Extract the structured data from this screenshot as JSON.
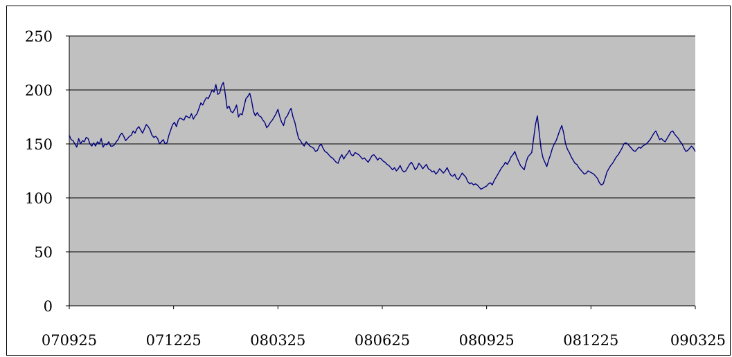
{
  "colors": {
    "plot_background": "#c0c0c0",
    "line": "#000080",
    "gridline": "#000000",
    "page": "#ffffff"
  },
  "chart_data": {
    "type": "line",
    "title": "",
    "xlabel": "",
    "ylabel": "",
    "ylim": [
      0,
      250
    ],
    "y_ticks": [
      "0",
      "50",
      "100",
      "150",
      "200",
      "250"
    ],
    "x_ticks": [
      "070925",
      "071225",
      "080325",
      "080625",
      "080925",
      "081225",
      "090325"
    ],
    "grid": "horizontal",
    "legend": "none",
    "series": [
      {
        "values": [
          158,
          154,
          153,
          150,
          147,
          155,
          150,
          153,
          152,
          156,
          155,
          150,
          148,
          151,
          148,
          152,
          150,
          155,
          147,
          150,
          149,
          152,
          148,
          148,
          149,
          152,
          154,
          158,
          160,
          157,
          153,
          155,
          157,
          158,
          162,
          160,
          164,
          166,
          163,
          160,
          164,
          168,
          166,
          163,
          158,
          156,
          157,
          155,
          150,
          152,
          154,
          150,
          151,
          158,
          163,
          168,
          170,
          166,
          172,
          174,
          173,
          172,
          176,
          175,
          174,
          178,
          173,
          176,
          178,
          183,
          188,
          186,
          190,
          193,
          192,
          196,
          200,
          198,
          205,
          196,
          197,
          204,
          207,
          196,
          183,
          185,
          180,
          179,
          182,
          186,
          175,
          178,
          177,
          185,
          192,
          194,
          197,
          190,
          180,
          176,
          179,
          176,
          175,
          172,
          170,
          165,
          167,
          170,
          172,
          175,
          178,
          182,
          175,
          170,
          167,
          174,
          176,
          180,
          183,
          175,
          170,
          162,
          155,
          153,
          150,
          148,
          152,
          150,
          148,
          147,
          146,
          143,
          144,
          148,
          150,
          146,
          143,
          142,
          140,
          138,
          137,
          135,
          133,
          132,
          137,
          140,
          136,
          139,
          141,
          144,
          140,
          139,
          142,
          141,
          140,
          138,
          136,
          137,
          135,
          133,
          136,
          139,
          140,
          138,
          135,
          137,
          136,
          134,
          133,
          131,
          130,
          128,
          126,
          128,
          125,
          127,
          130,
          126,
          124,
          125,
          128,
          131,
          133,
          130,
          126,
          128,
          132,
          130,
          127,
          129,
          131,
          127,
          126,
          124,
          125,
          122,
          124,
          127,
          125,
          123,
          125,
          128,
          124,
          121,
          120,
          122,
          118,
          117,
          120,
          123,
          121,
          119,
          115,
          113,
          114,
          112,
          113,
          112,
          110,
          108,
          109,
          110,
          111,
          113,
          114,
          112,
          116,
          119,
          122,
          125,
          128,
          130,
          133,
          131,
          134,
          138,
          140,
          143,
          138,
          134,
          130,
          128,
          126,
          133,
          138,
          140,
          142,
          155,
          168,
          176,
          160,
          145,
          137,
          133,
          129,
          135,
          140,
          146,
          150,
          153,
          158,
          163,
          167,
          160,
          150,
          145,
          142,
          138,
          135,
          132,
          131,
          128,
          126,
          124,
          122,
          123,
          125,
          124,
          123,
          122,
          120,
          118,
          114,
          112,
          113,
          118,
          124,
          127,
          130,
          132,
          135,
          138,
          140,
          143,
          146,
          150,
          151,
          150,
          148,
          146,
          144,
          143,
          145,
          147,
          146,
          148,
          149,
          150,
          152,
          154,
          157,
          160,
          162,
          158,
          154,
          155,
          153,
          152,
          155,
          158,
          161,
          162,
          159,
          157,
          155,
          152,
          150,
          146,
          143,
          144,
          146,
          148,
          146,
          143
        ]
      }
    ]
  }
}
